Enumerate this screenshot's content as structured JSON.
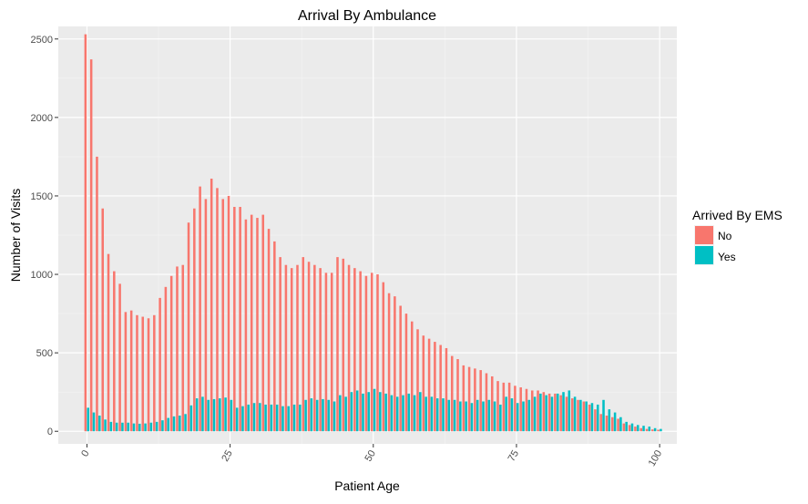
{
  "chart_data": {
    "type": "bar",
    "title": "Arrival By Ambulance",
    "xlabel": "Patient Age",
    "ylabel": "Number of Visits",
    "xlim": [
      -5,
      103
    ],
    "ylim": [
      -80,
      2580
    ],
    "x_ticks": [
      0,
      25,
      50,
      75,
      100
    ],
    "x_tick_labels": [
      "0",
      "25",
      "50",
      "75",
      "100"
    ],
    "y_ticks": [
      0,
      500,
      1000,
      1500,
      2000,
      2500
    ],
    "y_tick_labels": [
      "0",
      "500",
      "1000",
      "1500",
      "2000",
      "2500"
    ],
    "grid": true,
    "legend": {
      "title": "Arrived By EMS",
      "position": "right"
    },
    "x": [
      0,
      1,
      2,
      3,
      4,
      5,
      6,
      7,
      8,
      9,
      10,
      11,
      12,
      13,
      14,
      15,
      16,
      17,
      18,
      19,
      20,
      21,
      22,
      23,
      24,
      25,
      26,
      27,
      28,
      29,
      30,
      31,
      32,
      33,
      34,
      35,
      36,
      37,
      38,
      39,
      40,
      41,
      42,
      43,
      44,
      45,
      46,
      47,
      48,
      49,
      50,
      51,
      52,
      53,
      54,
      55,
      56,
      57,
      58,
      59,
      60,
      61,
      62,
      63,
      64,
      65,
      66,
      67,
      68,
      69,
      70,
      71,
      72,
      73,
      74,
      75,
      76,
      77,
      78,
      79,
      80,
      81,
      82,
      83,
      84,
      85,
      86,
      87,
      88,
      89,
      90,
      91,
      92,
      93,
      94,
      95,
      96,
      97,
      98,
      99,
      100
    ],
    "series": [
      {
        "name": "No",
        "color": "#F8766D",
        "values": [
          2530,
          2370,
          1750,
          1420,
          1130,
          1020,
          940,
          760,
          770,
          740,
          730,
          720,
          740,
          850,
          920,
          990,
          1050,
          1060,
          1330,
          1420,
          1560,
          1480,
          1610,
          1550,
          1480,
          1500,
          1430,
          1430,
          1350,
          1380,
          1360,
          1380,
          1290,
          1210,
          1110,
          1060,
          1040,
          1060,
          1110,
          1080,
          1060,
          1040,
          1010,
          1010,
          1110,
          1100,
          1060,
          1040,
          1020,
          990,
          1010,
          1000,
          950,
          880,
          860,
          800,
          750,
          700,
          650,
          610,
          590,
          570,
          550,
          530,
          480,
          460,
          420,
          410,
          400,
          390,
          370,
          350,
          320,
          310,
          310,
          290,
          280,
          270,
          260,
          260,
          250,
          240,
          240,
          230,
          220,
          210,
          200,
          190,
          170,
          140,
          110,
          100,
          90,
          80,
          50,
          40,
          30,
          20,
          15,
          12,
          10
        ]
      },
      {
        "name": "Yes",
        "color": "#00BFC4",
        "values": [
          150,
          120,
          100,
          75,
          60,
          55,
          55,
          55,
          50,
          48,
          50,
          55,
          60,
          70,
          85,
          95,
          100,
          110,
          165,
          210,
          220,
          200,
          205,
          210,
          215,
          200,
          150,
          160,
          170,
          180,
          180,
          170,
          170,
          170,
          160,
          160,
          170,
          170,
          200,
          210,
          200,
          205,
          200,
          190,
          230,
          220,
          250,
          260,
          240,
          250,
          270,
          250,
          240,
          230,
          220,
          230,
          240,
          230,
          250,
          220,
          220,
          210,
          210,
          200,
          200,
          190,
          190,
          180,
          200,
          190,
          200,
          190,
          170,
          220,
          210,
          180,
          190,
          200,
          220,
          240,
          230,
          220,
          240,
          250,
          260,
          220,
          200,
          190,
          180,
          170,
          200,
          140,
          120,
          90,
          60,
          50,
          40,
          35,
          30,
          20,
          15
        ]
      }
    ]
  }
}
